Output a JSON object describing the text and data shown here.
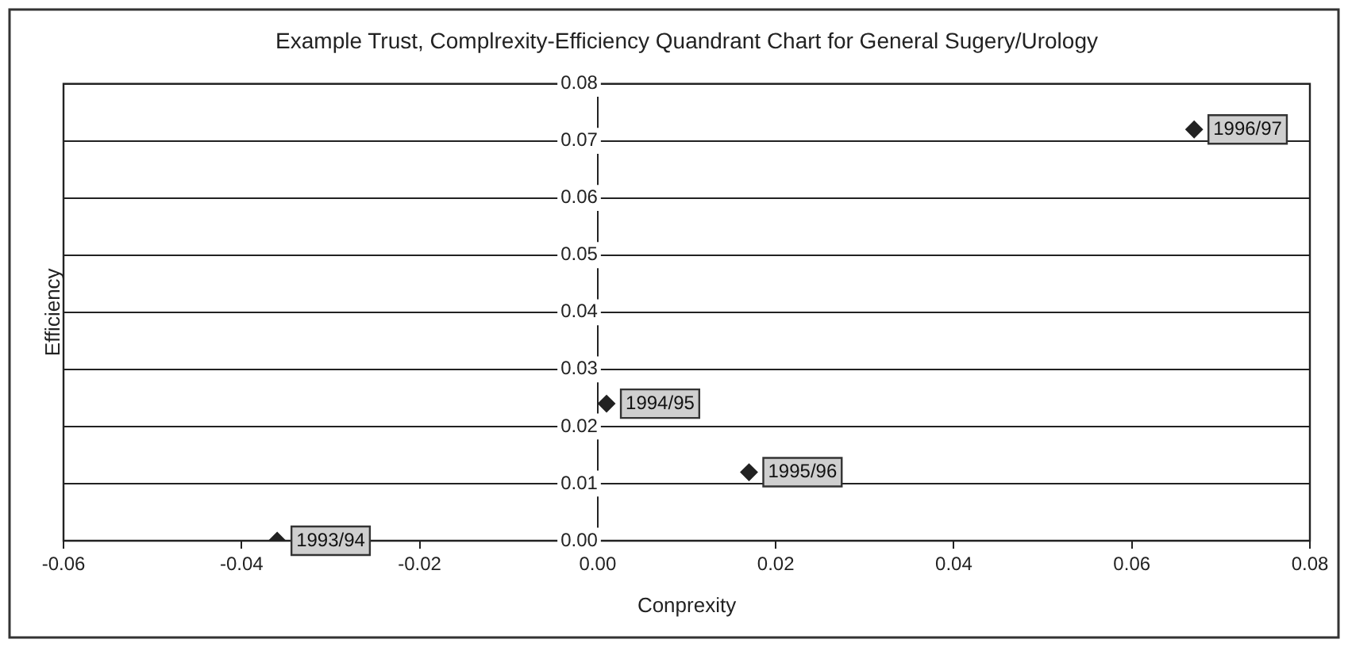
{
  "chart_data": {
    "type": "scatter",
    "title": "Example Trust, Complrexity-Efficiency Quandrant Chart for General Sugery/Urology",
    "xlabel": "Conprexity",
    "ylabel": "Efficiency",
    "x": [
      -0.036,
      0.001,
      0.017,
      0.067
    ],
    "series": [
      {
        "color": "#222222",
        "values": [
          0,
          0.024,
          0.012,
          0.072
        ]
      }
    ],
    "annotations": [
      {
        "text": "1993/94",
        "x": -0.036,
        "y": 0
      },
      {
        "text": "1994/95",
        "x": 0.001,
        "y": 0.024
      },
      {
        "text": "1995/96",
        "x": 0.017,
        "y": 0.012
      },
      {
        "text": "1996/97",
        "x": 0.067,
        "y": 0.072
      }
    ],
    "xlim": [
      -0.06,
      0.08
    ],
    "xticks": [
      -0.06,
      -0.04,
      -0.02,
      {
        "value": 0,
        "label": "0.00"
      },
      0.02,
      0.04,
      0.06,
      0.08
    ],
    "ylim": [
      0,
      0.08
    ],
    "yticks": [
      {
        "value": 0,
        "label": "0.00"
      },
      0.01,
      0.02,
      0.03,
      0.04,
      0.05,
      0.06,
      0.07,
      0.08
    ],
    "grid": "y",
    "legend": false,
    "marker": "diamond"
  }
}
